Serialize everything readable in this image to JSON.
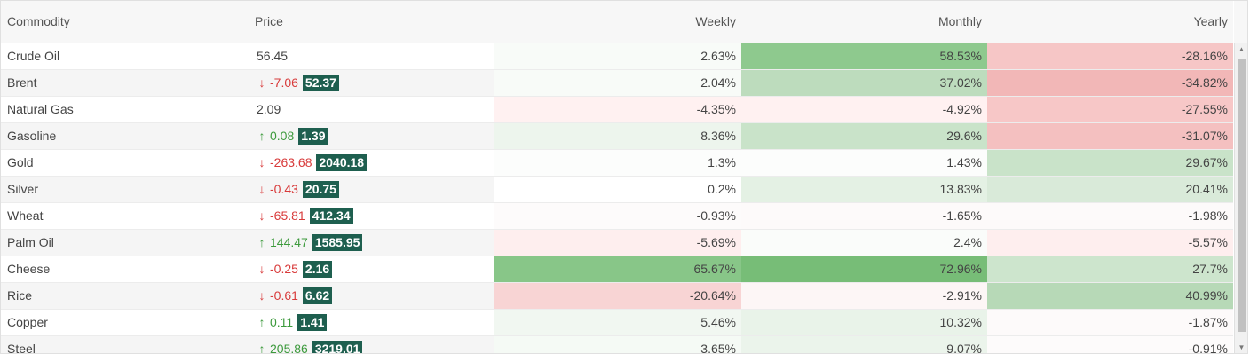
{
  "columns": {
    "commodity": "Commodity",
    "price": "Price",
    "weekly": "Weekly",
    "monthly": "Monthly",
    "yearly": "Yearly"
  },
  "rows": [
    {
      "name": "Crude Oil",
      "change": null,
      "direction": null,
      "price": "56.45",
      "weekly": "2.63%",
      "monthly": "58.53%",
      "yearly": "-28.16%",
      "weekly_bg": "#f8fbf8",
      "monthly_bg": "#8ec98e",
      "yearly_bg": "#f6c6c6"
    },
    {
      "name": "Brent",
      "change": "-7.06",
      "direction": "down",
      "price": "52.37",
      "weekly": "2.04%",
      "monthly": "37.02%",
      "yearly": "-34.82%",
      "weekly_bg": "#f8fbf8",
      "monthly_bg": "#bddcbd",
      "yearly_bg": "#f2b7b7"
    },
    {
      "name": "Natural Gas",
      "change": null,
      "direction": null,
      "price": "2.09",
      "weekly": "-4.35%",
      "monthly": "-4.92%",
      "yearly": "-27.55%",
      "weekly_bg": "#fff1f1",
      "monthly_bg": "#fff1f1",
      "yearly_bg": "#f7c7c7"
    },
    {
      "name": "Gasoline",
      "change": "0.08",
      "direction": "up",
      "price": "1.39",
      "weekly": "8.36%",
      "monthly": "29.6%",
      "yearly": "-31.07%",
      "weekly_bg": "#edf5ed",
      "monthly_bg": "#c9e3c9",
      "yearly_bg": "#f4c0c0"
    },
    {
      "name": "Gold",
      "change": "-263.68",
      "direction": "down",
      "price": "2040.18",
      "weekly": "1.3%",
      "monthly": "1.43%",
      "yearly": "29.67%",
      "weekly_bg": "#fcfdfc",
      "monthly_bg": "#fcfdfc",
      "yearly_bg": "#c9e3c9"
    },
    {
      "name": "Silver",
      "change": "-0.43",
      "direction": "down",
      "price": "20.75",
      "weekly": "0.2%",
      "monthly": "13.83%",
      "yearly": "20.41%",
      "weekly_bg": "#ffffff",
      "monthly_bg": "#e4f1e4",
      "yearly_bg": "#d9ead9"
    },
    {
      "name": "Wheat",
      "change": "-65.81",
      "direction": "down",
      "price": "412.34",
      "weekly": "-0.93%",
      "monthly": "-1.65%",
      "yearly": "-1.98%",
      "weekly_bg": "#fdfbfb",
      "monthly_bg": "#fdfafa",
      "yearly_bg": "#fdfafa"
    },
    {
      "name": "Palm Oil",
      "change": "144.47",
      "direction": "up",
      "price": "1585.95",
      "weekly": "-5.69%",
      "monthly": "2.4%",
      "yearly": "-5.57%",
      "weekly_bg": "#feeeee",
      "monthly_bg": "#fafcfa",
      "yearly_bg": "#feeeee"
    },
    {
      "name": "Cheese",
      "change": "-0.25",
      "direction": "down",
      "price": "2.16",
      "weekly": "65.67%",
      "monthly": "72.96%",
      "yearly": "27.7%",
      "weekly_bg": "#88c688",
      "monthly_bg": "#77bd77",
      "yearly_bg": "#cde5cd"
    },
    {
      "name": "Rice",
      "change": "-0.61",
      "direction": "down",
      "price": "6.62",
      "weekly": "-20.64%",
      "monthly": "-2.91%",
      "yearly": "40.99%",
      "weekly_bg": "#f8d4d4",
      "monthly_bg": "#fdf6f6",
      "yearly_bg": "#b7d9b7"
    },
    {
      "name": "Copper",
      "change": "0.11",
      "direction": "up",
      "price": "1.41",
      "weekly": "5.46%",
      "monthly": "10.32%",
      "yearly": "-1.87%",
      "weekly_bg": "#f1f7f1",
      "monthly_bg": "#e9f3e9",
      "yearly_bg": "#fdfafa"
    },
    {
      "name": "Steel",
      "change": "205.86",
      "direction": "up",
      "price": "3219.01",
      "weekly": "3.65%",
      "monthly": "9.07%",
      "yearly": "-0.91%",
      "weekly_bg": "#f5faf5",
      "monthly_bg": "#ebf4eb",
      "yearly_bg": "#fdfbfb"
    }
  ],
  "colors": {
    "badge": "#1e5f4f",
    "up": "#3d9a3d",
    "down": "#d83a3a",
    "alt_row": "#f5f5f5"
  },
  "icons": {
    "up": "arrow-up-icon",
    "down": "arrow-down-icon"
  }
}
